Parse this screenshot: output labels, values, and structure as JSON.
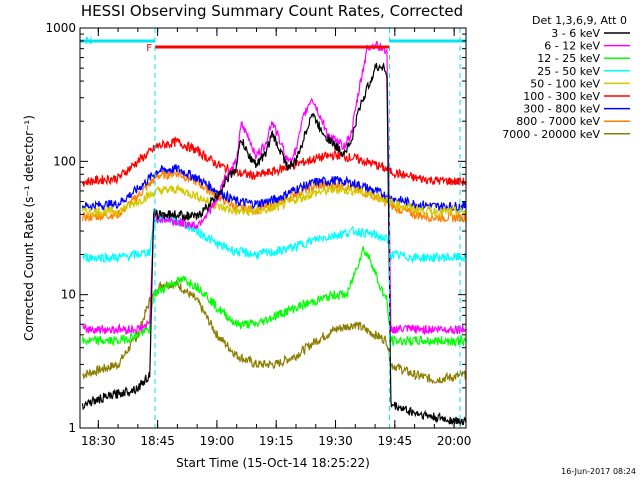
{
  "chart_data": {
    "type": "line",
    "title": "HESSI Observing Summary Count Rates, Corrected",
    "xlabel": "Start Time (15-Oct-14 18:25:22)",
    "ylabel": "Corrected Count Rate (s⁻¹ detector⁻¹)",
    "yscale": "log",
    "ylim": [
      1,
      1000
    ],
    "xlim": [
      "18:25:22",
      "20:03:00"
    ],
    "x_ticks": [
      "18:30",
      "18:45",
      "19:00",
      "19:15",
      "19:30",
      "19:45",
      "20:00"
    ],
    "y_ticks": [
      "1",
      "10",
      "100",
      "1000"
    ],
    "grid": false,
    "legend_position": "right",
    "legend_header": "Det 1,3,6,9, Att 0",
    "timestamp": "16-Jun-2017 08:24",
    "flags": [
      {
        "label": "N",
        "color": "#00e5ee",
        "ranges": [
          [
            "18:25:22",
            "18:44:20"
          ],
          [
            "19:43:40",
            "20:03:00"
          ]
        ]
      },
      {
        "label": "F",
        "color": "#ff0000",
        "ranges": [
          [
            "18:44:20",
            "19:43:40"
          ]
        ]
      }
    ],
    "markers": [
      "18:44:20",
      "19:43:40",
      "20:01:30"
    ],
    "series": [
      {
        "name": "3 - 6 keV",
        "color": "#000000",
        "x": [
          "18:26",
          "18:40",
          "18:43",
          "18:44",
          "18:50",
          "18:55",
          "19:00",
          "19:02",
          "19:05",
          "19:06",
          "19:08",
          "19:10",
          "19:12",
          "19:14",
          "19:16",
          "19:18",
          "19:20",
          "19:22",
          "19:24",
          "19:26",
          "19:28",
          "19:30",
          "19:32",
          "19:34",
          "19:36",
          "19:38",
          "19:40",
          "19:42",
          "19:43",
          "19:44",
          "19:50",
          "19:55",
          "20:03"
        ],
        "y": [
          1.5,
          2,
          2.5,
          40,
          40,
          38,
          55,
          70,
          90,
          150,
          110,
          95,
          110,
          160,
          120,
          90,
          100,
          150,
          230,
          180,
          150,
          130,
          115,
          140,
          250,
          350,
          500,
          520,
          450,
          1.5,
          1.3,
          1.2,
          1.1
        ]
      },
      {
        "name": "6 - 12 keV",
        "color": "#ff00ff",
        "x": [
          "18:26",
          "18:40",
          "18:43",
          "18:44",
          "18:50",
          "18:55",
          "19:00",
          "19:02",
          "19:05",
          "19:06",
          "19:08",
          "19:10",
          "19:12",
          "19:14",
          "19:16",
          "19:18",
          "19:20",
          "19:22",
          "19:24",
          "19:26",
          "19:28",
          "19:30",
          "19:32",
          "19:34",
          "19:36",
          "19:38",
          "19:40",
          "19:42",
          "19:43",
          "19:44",
          "19:50",
          "19:55",
          "20:03"
        ],
        "y": [
          5.5,
          5.5,
          6,
          38,
          35,
          33,
          50,
          75,
          100,
          190,
          150,
          110,
          130,
          200,
          140,
          100,
          120,
          220,
          300,
          220,
          160,
          140,
          130,
          160,
          350,
          700,
          750,
          700,
          680,
          5.5,
          5.5,
          5.5,
          5.5
        ]
      },
      {
        "name": "12 - 25 keV",
        "color": "#00ff00",
        "x": [
          "18:26",
          "18:35",
          "18:40",
          "18:43",
          "18:44",
          "18:48",
          "18:52",
          "18:56",
          "19:00",
          "19:05",
          "19:10",
          "19:15",
          "19:20",
          "19:25",
          "19:30",
          "19:33",
          "19:35",
          "19:37",
          "19:39",
          "19:41",
          "19:43",
          "19:44",
          "19:50",
          "19:55",
          "20:03"
        ],
        "y": [
          4.5,
          4.5,
          5,
          5.5,
          10,
          12,
          13,
          11,
          8,
          6,
          6,
          7,
          8,
          9,
          10,
          10,
          15,
          22,
          18,
          12,
          9,
          4.5,
          4.5,
          4.5,
          4.5
        ]
      },
      {
        "name": "25 - 50 keV",
        "color": "#00ffff",
        "x": [
          "18:26",
          "18:35",
          "18:40",
          "18:43",
          "18:44",
          "18:46",
          "18:50",
          "18:55",
          "19:00",
          "19:05",
          "19:10",
          "19:15",
          "19:20",
          "19:25",
          "19:30",
          "19:35",
          "19:40",
          "19:43",
          "19:44",
          "19:50",
          "19:55",
          "20:03"
        ],
        "y": [
          19,
          19,
          20,
          21,
          34,
          38,
          36,
          30,
          24,
          21,
          20,
          21,
          23,
          26,
          28,
          30,
          28,
          26,
          20,
          19,
          19,
          19
        ]
      },
      {
        "name": "50 - 100 keV",
        "color": "#d4c800",
        "x": [
          "18:26",
          "18:35",
          "18:40",
          "18:45",
          "18:50",
          "18:55",
          "19:00",
          "19:05",
          "19:10",
          "19:15",
          "19:20",
          "19:25",
          "19:30",
          "19:35",
          "19:40",
          "19:45",
          "19:50",
          "19:55",
          "20:03"
        ],
        "y": [
          42,
          42,
          50,
          60,
          62,
          55,
          46,
          42,
          42,
          45,
          52,
          58,
          62,
          60,
          55,
          48,
          44,
          42,
          42
        ]
      },
      {
        "name": "100 - 300 keV",
        "color": "#ff0000",
        "x": [
          "18:26",
          "18:35",
          "18:40",
          "18:45",
          "18:50",
          "18:55",
          "19:00",
          "19:05",
          "19:10",
          "19:15",
          "19:20",
          "19:25",
          "19:30",
          "19:35",
          "19:40",
          "19:45",
          "19:50",
          "19:55",
          "20:03"
        ],
        "y": [
          70,
          75,
          100,
          130,
          140,
          120,
          95,
          82,
          78,
          85,
          95,
          105,
          112,
          105,
          95,
          82,
          75,
          72,
          70
        ]
      },
      {
        "name": "300 - 800 keV",
        "color": "#0000ff",
        "x": [
          "18:26",
          "18:35",
          "18:40",
          "18:45",
          "18:50",
          "18:55",
          "19:00",
          "19:05",
          "19:10",
          "19:15",
          "19:20",
          "19:25",
          "19:30",
          "19:35",
          "19:40",
          "19:45",
          "19:50",
          "19:55",
          "20:03"
        ],
        "y": [
          46,
          48,
          62,
          85,
          88,
          75,
          60,
          50,
          48,
          52,
          62,
          70,
          72,
          68,
          60,
          52,
          48,
          46,
          46
        ]
      },
      {
        "name": "800 - 7000 keV",
        "color": "#ff8000",
        "x": [
          "18:26",
          "18:35",
          "18:40",
          "18:45",
          "18:50",
          "18:55",
          "19:00",
          "19:05",
          "19:10",
          "19:15",
          "19:20",
          "19:25",
          "19:30",
          "19:35",
          "19:40",
          "19:45",
          "19:50",
          "19:55",
          "20:03"
        ],
        "y": [
          38,
          40,
          55,
          78,
          82,
          70,
          55,
          45,
          43,
          48,
          58,
          65,
          68,
          62,
          55,
          45,
          40,
          38,
          38
        ]
      },
      {
        "name": "7000 - 20000 keV",
        "color": "#8b7d00",
        "x": [
          "18:26",
          "18:35",
          "18:40",
          "18:43",
          "18:46",
          "18:50",
          "18:55",
          "19:00",
          "19:05",
          "19:10",
          "19:15",
          "19:20",
          "19:25",
          "19:30",
          "19:35",
          "19:40",
          "19:43",
          "19:44",
          "19:50",
          "19:55",
          "20:03"
        ],
        "y": [
          2.5,
          3,
          5,
          9,
          12,
          12,
          9,
          5,
          3.5,
          3,
          3,
          3.5,
          4.5,
          5.5,
          6,
          5,
          4.5,
          3,
          2.5,
          2.3,
          2.5
        ]
      }
    ]
  }
}
